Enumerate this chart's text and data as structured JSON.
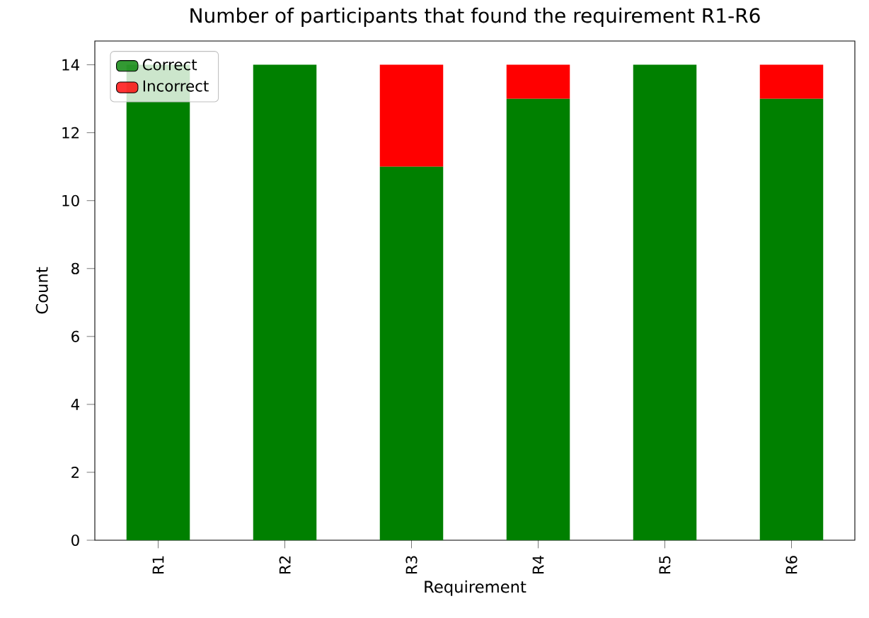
{
  "chart_data": {
    "type": "bar",
    "title": "Number of participants that found the requirement R1-R6",
    "xlabel": "Requirement",
    "ylabel": "Count",
    "categories": [
      "R1",
      "R2",
      "R3",
      "R4",
      "R5",
      "R6"
    ],
    "series": [
      {
        "name": "Correct",
        "color": "#008000",
        "values": [
          14,
          14,
          11,
          13,
          14,
          13
        ]
      },
      {
        "name": "Incorrect",
        "color": "#ff0000",
        "values": [
          0,
          0,
          3,
          1,
          0,
          1
        ]
      }
    ],
    "stacked": true,
    "ylim": [
      0,
      14.7
    ],
    "yticks": [
      0,
      2,
      4,
      6,
      8,
      10,
      12,
      14
    ],
    "legend": "top left"
  }
}
